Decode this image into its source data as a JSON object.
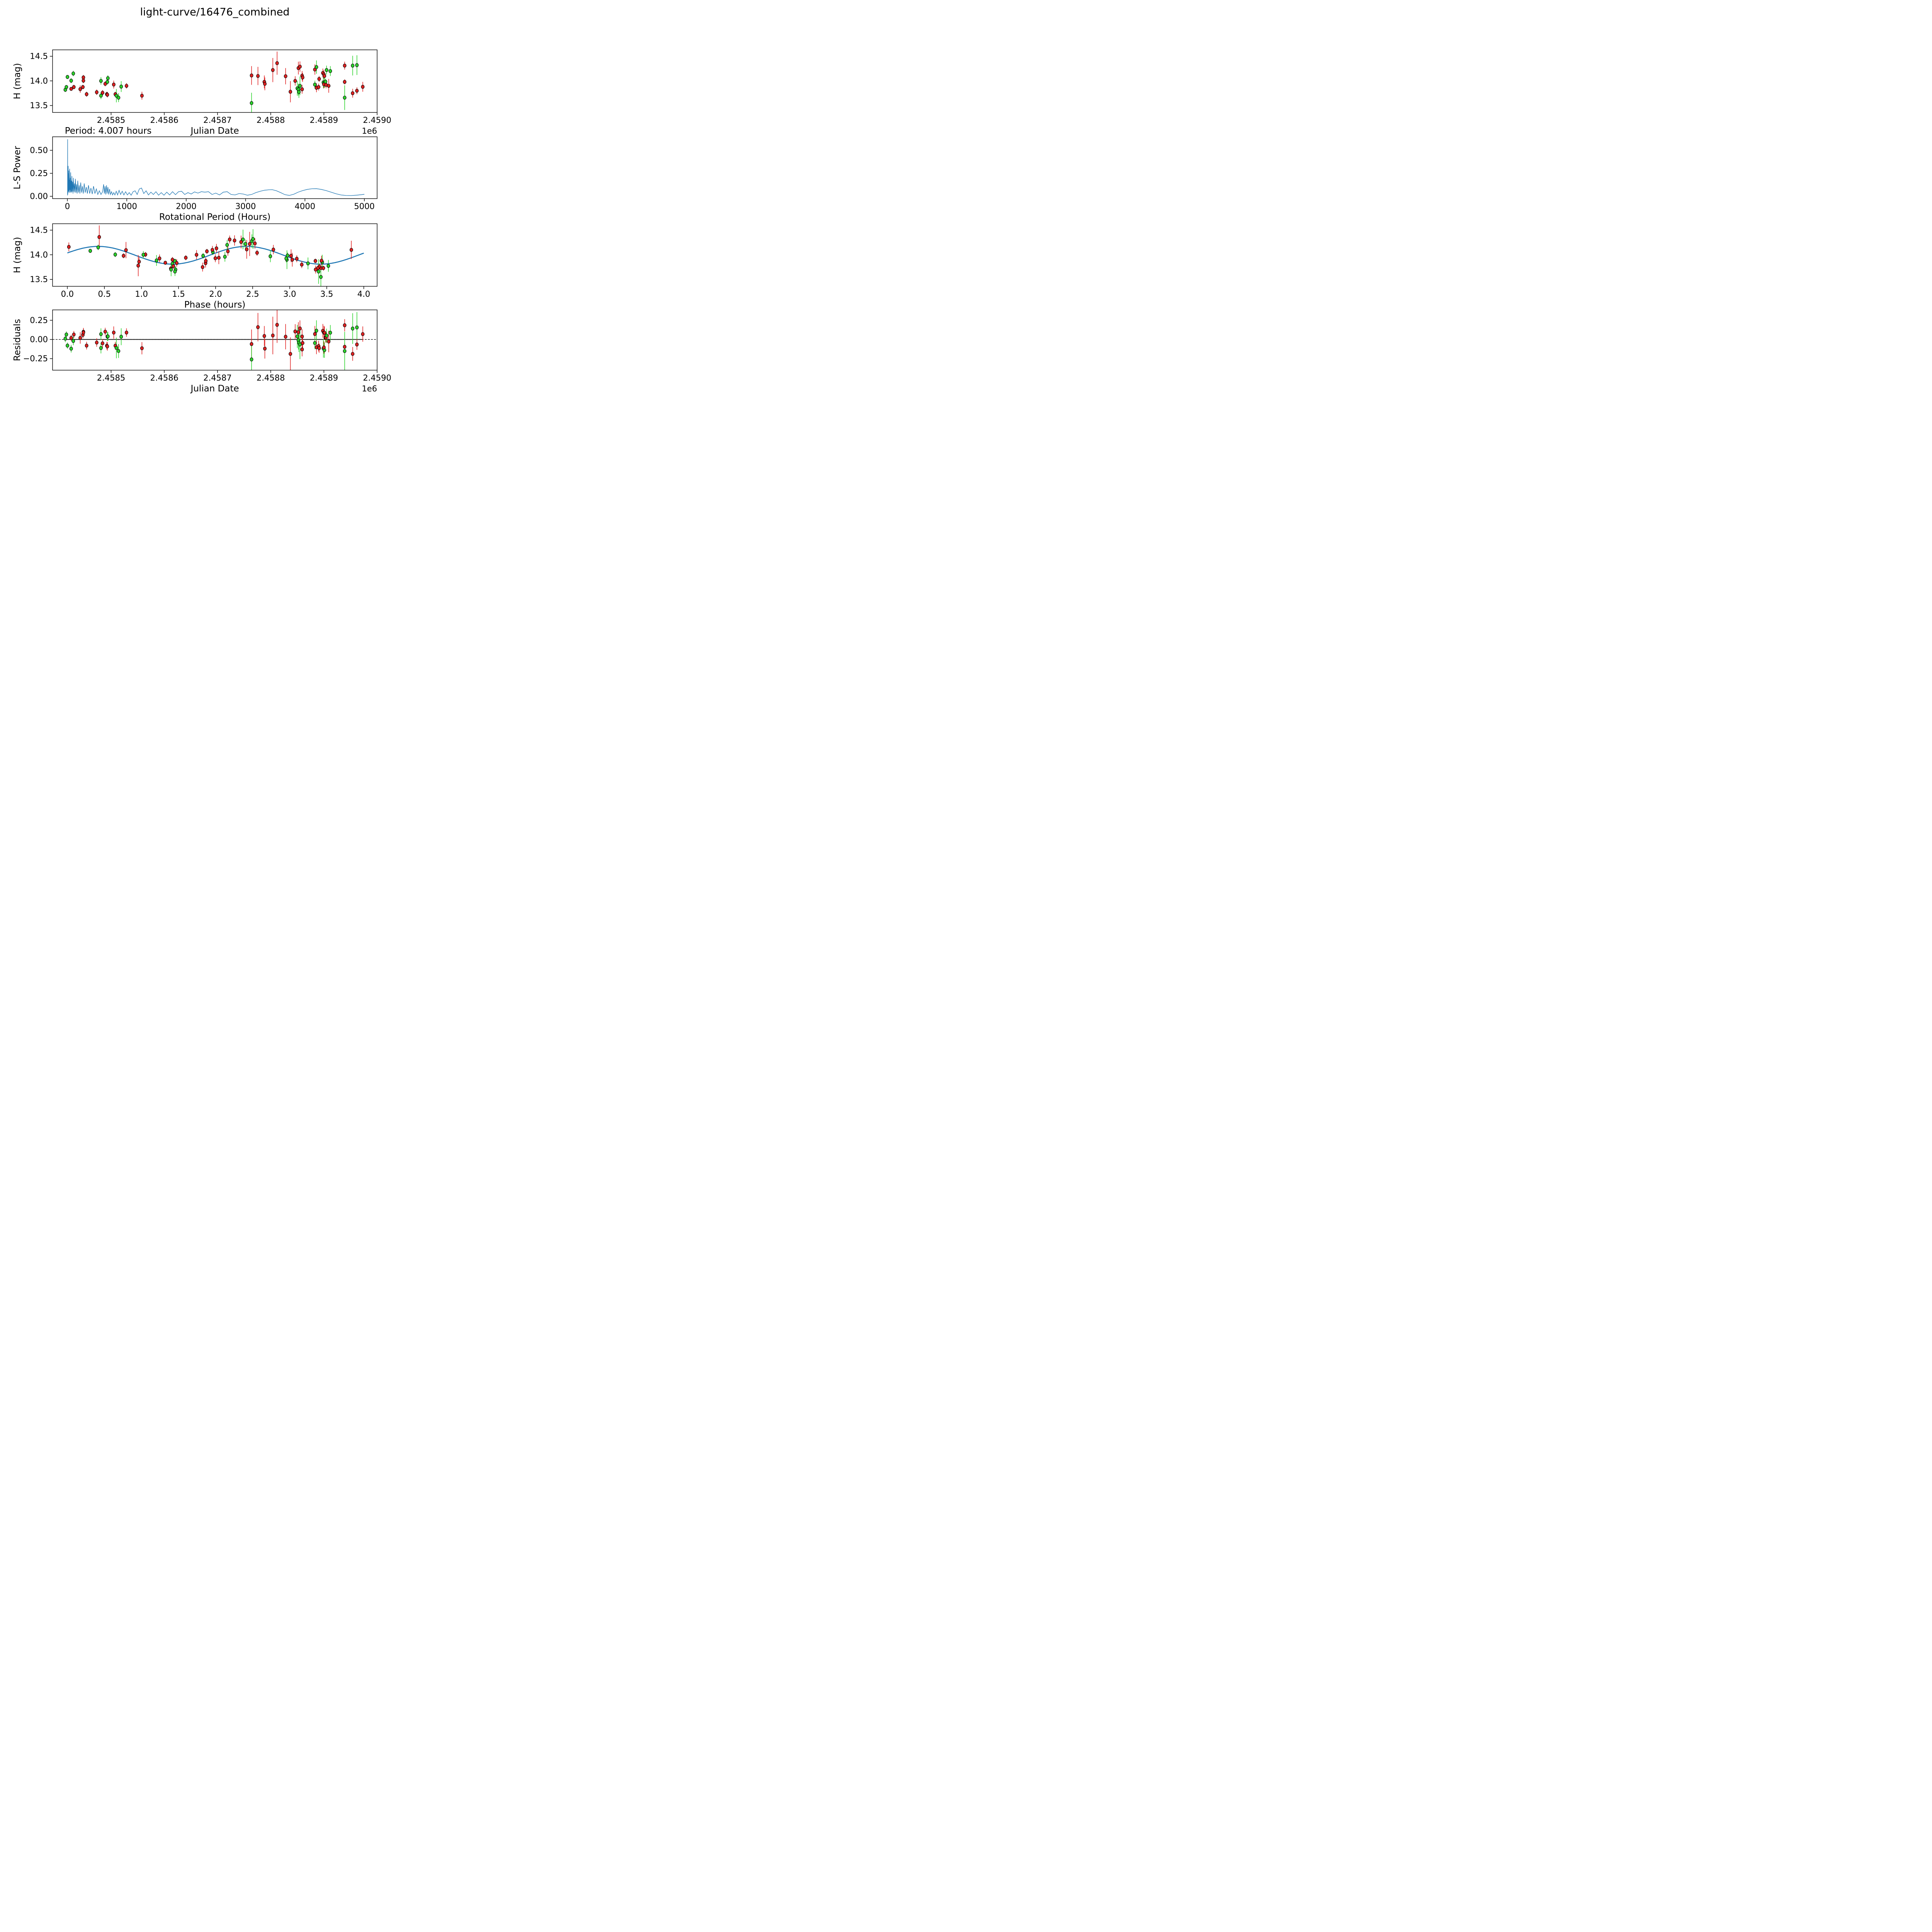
{
  "title": "light-curve/16476_combined",
  "colors": {
    "green": "#2bd32b",
    "red": "#e02020",
    "blue": "#1f77b4",
    "black": "#000000",
    "background": "#ffffff"
  },
  "chart_data": {
    "type": [
      "scatter",
      "line",
      "scatter",
      "scatter"
    ],
    "fit": {
      "mean": 13.99,
      "amplitude": 0.18,
      "period_hours": 2.0035,
      "phase_shift": 0.085,
      "rotation_period_label": "Period: 4.007 hours"
    },
    "observations": [
      [
        2458414,
        1.418,
        13.82,
        0.045,
        "g"
      ],
      [
        2458416,
        1.45,
        13.875,
        0.04,
        "g"
      ],
      [
        2458418,
        0.309,
        14.08,
        0.04,
        "g"
      ],
      [
        2458425,
        0.646,
        14.005,
        0.05,
        "g"
      ],
      [
        2458429,
        0.416,
        14.15,
        0.055,
        "g"
      ],
      [
        2458425,
        1.322,
        13.838,
        0.04,
        "r"
      ],
      [
        2458430,
        3.43,
        13.875,
        0.045,
        "r"
      ],
      [
        2458442,
        1.476,
        13.833,
        0.075,
        "r"
      ],
      [
        2458447,
        3.347,
        13.875,
        0.045,
        "r"
      ],
      [
        2458448,
        1.883,
        14.07,
        0.05,
        "r"
      ],
      [
        2458448,
        1.054,
        14.005,
        0.05,
        "r"
      ],
      [
        2458454,
        3.421,
        13.73,
        0.05,
        "r"
      ],
      [
        2458473,
        1.43,
        13.77,
        0.055,
        "r"
      ],
      [
        2458481,
        1.025,
        14.0,
        0.075,
        "g"
      ],
      [
        2458481,
        1.46,
        13.7,
        0.07,
        "g"
      ],
      [
        2458484,
        3.4,
        13.76,
        0.055,
        "r"
      ],
      [
        2458489,
        1.598,
        13.94,
        0.05,
        "r"
      ],
      [
        2458492,
        3.455,
        13.73,
        0.05,
        "r"
      ],
      [
        2458493,
        1.396,
        13.72,
        0.055,
        "r"
      ],
      [
        2458493,
        1.832,
        13.98,
        0.055,
        "g"
      ],
      [
        2458494,
        1.963,
        14.055,
        0.06,
        "g"
      ],
      [
        2458505,
        1.244,
        13.926,
        0.08,
        "r"
      ],
      [
        2458508,
        3.38,
        13.73,
        0.05,
        "r"
      ],
      [
        2458510,
        1.4,
        13.7,
        0.135,
        "g"
      ],
      [
        2458514,
        1.452,
        13.66,
        0.09,
        "g"
      ],
      [
        2458519,
        1.203,
        13.885,
        0.11,
        "g"
      ],
      [
        2458529,
        1.418,
        13.9,
        0.055,
        "r"
      ],
      [
        2458558,
        3.35,
        13.7,
        0.08,
        "r"
      ],
      [
        2458764,
        2.42,
        14.11,
        0.19,
        "r"
      ],
      [
        2458764,
        3.421,
        13.55,
        0.21,
        "g"
      ],
      [
        2458776,
        3.832,
        14.1,
        0.185,
        "r"
      ],
      [
        2458788,
        3.019,
        13.98,
        0.13,
        "r"
      ],
      [
        2458789,
        2.044,
        13.94,
        0.13,
        "r"
      ],
      [
        2458804,
        2.46,
        14.22,
        0.245,
        "r"
      ],
      [
        2458812,
        0.43,
        14.36,
        0.235,
        "r"
      ],
      [
        2458828,
        0.791,
        14.095,
        0.165,
        "r"
      ],
      [
        2458837,
        0.956,
        13.78,
        0.215,
        "r"
      ],
      [
        2458846,
        1.743,
        14.0,
        0.095,
        "r"
      ],
      [
        2458850,
        3.44,
        13.85,
        0.15,
        "g"
      ],
      [
        2458852,
        3.247,
        13.825,
        0.12,
        "g"
      ],
      [
        2458853,
        3.522,
        13.775,
        0.12,
        "g"
      ],
      [
        2458852,
        2.344,
        14.26,
        0.13,
        "r"
      ],
      [
        2458855,
        2.256,
        14.29,
        0.105,
        "r"
      ],
      [
        2458855,
        2.963,
        13.9,
        0.19,
        "g"
      ],
      [
        2458859,
        2.78,
        14.105,
        0.095,
        "r"
      ],
      [
        2458860,
        2.166,
        14.07,
        0.09,
        "r"
      ],
      [
        2458859,
        1.865,
        13.83,
        0.09,
        "r"
      ],
      [
        2458883,
        2.531,
        14.23,
        0.105,
        "r"
      ],
      [
        2458886,
        2.49,
        14.28,
        0.135,
        "g"
      ],
      [
        2458883,
        2.953,
        13.925,
        0.08,
        "g"
      ],
      [
        2458886,
        0.968,
        13.86,
        0.09,
        "r"
      ],
      [
        2458890,
        1.868,
        13.875,
        0.07,
        "r"
      ],
      [
        2458891,
        2.56,
        14.04,
        0.06,
        "r"
      ],
      [
        2458898,
        0.02,
        14.16,
        0.09,
        "r"
      ],
      [
        2458900,
        2.012,
        14.13,
        0.09,
        "r"
      ],
      [
        2458901,
        1.957,
        14.1,
        0.08,
        "r"
      ],
      [
        2458899,
        2.739,
        13.97,
        0.12,
        "g"
      ],
      [
        2458901,
        2.126,
        13.96,
        0.1,
        "g"
      ],
      [
        2458900,
        1.997,
        13.93,
        0.08,
        "r"
      ],
      [
        2458903,
        2.971,
        13.985,
        0.06,
        "g"
      ],
      [
        2458904,
        3.096,
        13.92,
        0.07,
        "r"
      ],
      [
        2458905,
        2.402,
        14.22,
        0.09,
        "g"
      ],
      [
        2458912,
        2.156,
        14.2,
        0.1,
        "g"
      ],
      [
        2458909,
        3.035,
        13.9,
        0.14,
        "r"
      ],
      [
        2458939,
        2.19,
        14.31,
        0.08,
        "r"
      ],
      [
        2458939,
        0.758,
        13.98,
        0.05,
        "r"
      ],
      [
        2458939,
        3.39,
        13.66,
        0.25,
        "g"
      ],
      [
        2458954,
        2.37,
        14.31,
        0.2,
        "g"
      ],
      [
        2458954,
        1.825,
        13.75,
        0.09,
        "r"
      ],
      [
        2458962,
        2.505,
        14.32,
        0.2,
        "g"
      ],
      [
        2458962,
        3.163,
        13.8,
        0.07,
        "r"
      ],
      [
        2458973,
        3.43,
        13.88,
        0.1,
        "r"
      ]
    ],
    "periodogram": [
      [
        2,
        0.01
      ],
      [
        3,
        0.05
      ],
      [
        4,
        0.62
      ],
      [
        5,
        0.08
      ],
      [
        7,
        0.02
      ],
      [
        9,
        0.3
      ],
      [
        11,
        0.06
      ],
      [
        13,
        0.33
      ],
      [
        15,
        0.04
      ],
      [
        18,
        0.25
      ],
      [
        21,
        0.05
      ],
      [
        24,
        0.28
      ],
      [
        27,
        0.06
      ],
      [
        30,
        0.18
      ],
      [
        34,
        0.04
      ],
      [
        38,
        0.3
      ],
      [
        42,
        0.07
      ],
      [
        46,
        0.2
      ],
      [
        50,
        0.04
      ],
      [
        55,
        0.26
      ],
      [
        60,
        0.05
      ],
      [
        65,
        0.17
      ],
      [
        70,
        0.04
      ],
      [
        76,
        0.22
      ],
      [
        82,
        0.05
      ],
      [
        88,
        0.16
      ],
      [
        95,
        0.03
      ],
      [
        102,
        0.2
      ],
      [
        110,
        0.05
      ],
      [
        118,
        0.14
      ],
      [
        126,
        0.04
      ],
      [
        135,
        0.19
      ],
      [
        144,
        0.04
      ],
      [
        154,
        0.13
      ],
      [
        164,
        0.03
      ],
      [
        175,
        0.17
      ],
      [
        186,
        0.04
      ],
      [
        198,
        0.12
      ],
      [
        210,
        0.03
      ],
      [
        224,
        0.15
      ],
      [
        238,
        0.04
      ],
      [
        252,
        0.11
      ],
      [
        267,
        0.03
      ],
      [
        283,
        0.14
      ],
      [
        300,
        0.04
      ],
      [
        318,
        0.1
      ],
      [
        336,
        0.03
      ],
      [
        355,
        0.12
      ],
      [
        375,
        0.03
      ],
      [
        396,
        0.09
      ],
      [
        418,
        0.025
      ],
      [
        440,
        0.11
      ],
      [
        463,
        0.03
      ],
      [
        487,
        0.08
      ],
      [
        512,
        0.02
      ],
      [
        538,
        0.06
      ],
      [
        565,
        0.02
      ],
      [
        593,
        0.05
      ],
      [
        610,
        0.13
      ],
      [
        622,
        0.03
      ],
      [
        634,
        0.11
      ],
      [
        646,
        0.02
      ],
      [
        658,
        0.12
      ],
      [
        670,
        0.03
      ],
      [
        682,
        0.1
      ],
      [
        695,
        0.02
      ],
      [
        710,
        0.08
      ],
      [
        726,
        0.02
      ],
      [
        743,
        0.05
      ],
      [
        761,
        0.015
      ],
      [
        780,
        0.04
      ],
      [
        800,
        0.015
      ],
      [
        822,
        0.055
      ],
      [
        845,
        0.015
      ],
      [
        870,
        0.065
      ],
      [
        896,
        0.02
      ],
      [
        923,
        0.055
      ],
      [
        951,
        0.015
      ],
      [
        980,
        0.05
      ],
      [
        1010,
        0.015
      ],
      [
        1041,
        0.04
      ],
      [
        1073,
        0.012
      ],
      [
        1106,
        0.05
      ],
      [
        1140,
        0.06
      ],
      [
        1175,
        0.02
      ],
      [
        1211,
        0.08
      ],
      [
        1248,
        0.09
      ],
      [
        1286,
        0.03
      ],
      [
        1325,
        0.06
      ],
      [
        1365,
        0.015
      ],
      [
        1406,
        0.045
      ],
      [
        1448,
        0.02
      ],
      [
        1491,
        0.05
      ],
      [
        1535,
        0.012
      ],
      [
        1580,
        0.04
      ],
      [
        1626,
        0.012
      ],
      [
        1673,
        0.045
      ],
      [
        1721,
        0.015
      ],
      [
        1770,
        0.05
      ],
      [
        1820,
        0.018
      ],
      [
        1871,
        0.05
      ],
      [
        1923,
        0.055
      ],
      [
        1976,
        0.02
      ],
      [
        2030,
        0.04
      ],
      [
        2085,
        0.025
      ],
      [
        2141,
        0.048
      ],
      [
        2198,
        0.035
      ],
      [
        2256,
        0.05
      ],
      [
        2315,
        0.045
      ],
      [
        2375,
        0.05
      ],
      [
        2436,
        0.02
      ],
      [
        2498,
        0.035
      ],
      [
        2561,
        0.015
      ],
      [
        2625,
        0.045
      ],
      [
        2690,
        0.05
      ],
      [
        2756,
        0.02
      ],
      [
        2823,
        0.015
      ],
      [
        2891,
        0.03
      ],
      [
        2960,
        0.025
      ],
      [
        3030,
        0.012
      ],
      [
        3101,
        0.02
      ],
      [
        3173,
        0.04
      ],
      [
        3246,
        0.055
      ],
      [
        3320,
        0.066
      ],
      [
        3395,
        0.071
      ],
      [
        3450,
        0.072
      ],
      [
        3520,
        0.06
      ],
      [
        3591,
        0.04
      ],
      [
        3663,
        0.018
      ],
      [
        3736,
        0.01
      ],
      [
        3810,
        0.022
      ],
      [
        3885,
        0.045
      ],
      [
        3961,
        0.062
      ],
      [
        4038,
        0.075
      ],
      [
        4116,
        0.082
      ],
      [
        4195,
        0.083
      ],
      [
        4275,
        0.075
      ],
      [
        4356,
        0.062
      ],
      [
        4438,
        0.045
      ],
      [
        4521,
        0.028
      ],
      [
        4605,
        0.015
      ],
      [
        4690,
        0.009
      ],
      [
        4776,
        0.008
      ],
      [
        4863,
        0.012
      ],
      [
        4951,
        0.018
      ],
      [
        5000,
        0.022
      ]
    ],
    "panels": [
      {
        "id": "lightcurve",
        "rect": [
          136,
          129,
          840,
          162
        ],
        "xlim": [
          2458390,
          2459000
        ],
        "ylim": [
          13.36,
          14.63
        ],
        "xticks": [
          2458500,
          2458600,
          2458700,
          2458800,
          2458900,
          2459000
        ],
        "xfmt": "jd",
        "yticks": [
          13.5,
          14.0,
          14.5
        ],
        "yfmt": "d1",
        "ylabel": "H (mag)",
        "xlabel": "Julian Date",
        "annotation": "Period: 4.007 hours",
        "offset_label": "1e6"
      },
      {
        "id": "periodogram",
        "rect": [
          136,
          354,
          840,
          160
        ],
        "xlim": [
          -250,
          5215
        ],
        "ylim": [
          -0.025,
          0.647
        ],
        "xticks": [
          0,
          1000,
          2000,
          3000,
          4000,
          5000
        ],
        "xfmt": "int",
        "yticks": [
          0.0,
          0.25,
          0.5
        ],
        "yfmt": "d2",
        "ylabel": "L-S Power",
        "xlabel": "Rotational Period (Hours)"
      },
      {
        "id": "phased",
        "rect": [
          136,
          579,
          840,
          162
        ],
        "xlim": [
          -0.2,
          4.18
        ],
        "ylim": [
          13.36,
          14.63
        ],
        "xticks": [
          0.0,
          0.5,
          1.0,
          1.5,
          2.0,
          2.5,
          3.0,
          3.5,
          4.0
        ],
        "xfmt": "d1",
        "yticks": [
          13.5,
          14.0,
          14.5
        ],
        "yfmt": "d1",
        "ylabel": "H (mag)",
        "xlabel": "Phase (hours)"
      },
      {
        "id": "residuals",
        "rect": [
          136,
          802,
          840,
          156
        ],
        "xlim": [
          2458390,
          2459000
        ],
        "ylim": [
          -0.4,
          0.385
        ],
        "xticks": [
          2458500,
          2458600,
          2458700,
          2458800,
          2458900,
          2459000
        ],
        "xfmt": "jd",
        "yticks": [
          -0.25,
          0.0,
          0.25
        ],
        "yfmt": "d2",
        "ylabel": "Residuals",
        "xlabel": "Julian Date",
        "offset_label": "1e6"
      }
    ]
  }
}
